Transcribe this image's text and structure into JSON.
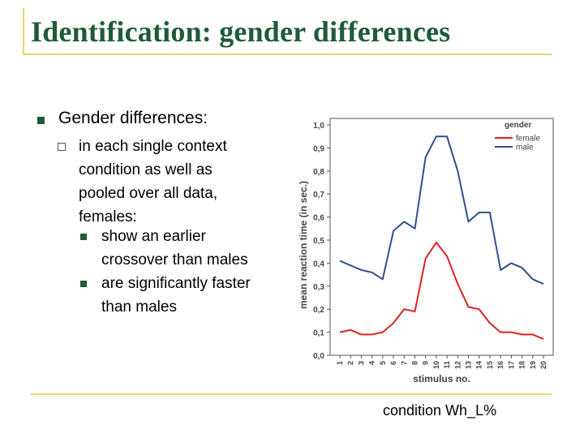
{
  "slide": {
    "title": "Identification: gender differences",
    "bullet1": "Gender differences:",
    "sub_lines": [
      "in each single context",
      "condition as well as",
      "pooled over all data,",
      "females:"
    ],
    "sub_sub": [
      [
        "show an earlier",
        "crossover than males"
      ],
      [
        "are significantly faster",
        "than males"
      ]
    ],
    "footer": "condition Wh_L%"
  },
  "chart_data": {
    "type": "line",
    "x": [
      1,
      2,
      3,
      4,
      5,
      6,
      7,
      8,
      9,
      10,
      11,
      12,
      13,
      14,
      15,
      16,
      17,
      18,
      19,
      20
    ],
    "tick_labels": [
      "1",
      "2",
      "3",
      "4",
      "5",
      "6",
      "7",
      "8",
      "9",
      "10",
      "11",
      "12",
      "13",
      "14",
      "15",
      "16",
      "17",
      "18",
      "19",
      "20"
    ],
    "series": [
      {
        "name": "female",
        "color": "#dd2222",
        "values": [
          0.1,
          0.11,
          0.09,
          0.09,
          0.1,
          0.14,
          0.2,
          0.19,
          0.42,
          0.49,
          0.43,
          0.31,
          0.21,
          0.2,
          0.14,
          0.1,
          0.1,
          0.09,
          0.09,
          0.07
        ]
      },
      {
        "name": "male",
        "color": "#2f4f8f",
        "values": [
          0.41,
          0.39,
          0.37,
          0.36,
          0.33,
          0.54,
          0.58,
          0.55,
          0.86,
          0.95,
          0.95,
          0.8,
          0.58,
          0.62,
          0.62,
          0.37,
          0.4,
          0.38,
          0.33,
          0.31
        ]
      }
    ],
    "xlabel": "stimulus no.",
    "ylabel": "mean reaction time (in sec.)",
    "ylim": [
      0,
      1.0
    ],
    "yticks": [
      "0,0",
      "0,1",
      "0,2",
      "0,3",
      "0,4",
      "0,5",
      "0,6",
      "0,7",
      "0,8",
      "0,9",
      "1,0"
    ],
    "legend_title": "gender",
    "legend_position": "top-right"
  }
}
